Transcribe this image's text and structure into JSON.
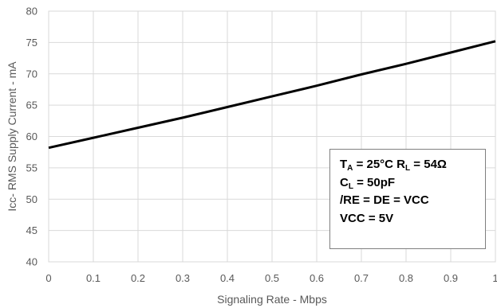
{
  "chart_data": {
    "type": "line",
    "title": "",
    "xlabel": "Signaling Rate - Mbps",
    "ylabel": "Icc- RMS Supply Current - mA",
    "xlim": [
      0,
      1
    ],
    "ylim": [
      40,
      80
    ],
    "x_ticks": [
      "0",
      "0.1",
      "0.2",
      "0.3",
      "0.4",
      "0.5",
      "0.6",
      "0.7",
      "0.8",
      "0.9",
      "1"
    ],
    "y_ticks": [
      "40",
      "45",
      "50",
      "55",
      "60",
      "65",
      "70",
      "75",
      "80"
    ],
    "grid": true,
    "legend": null,
    "series": [
      {
        "color": "#000000",
        "x": [
          0,
          0.1,
          0.2,
          0.3,
          0.4,
          0.5,
          0.6,
          0.7,
          0.8,
          0.9,
          1.0
        ],
        "y": [
          58.2,
          59.8,
          61.4,
          63.0,
          64.7,
          66.4,
          68.1,
          69.9,
          71.6,
          73.4,
          75.2
        ]
      }
    ],
    "annotation": {
      "line1": {
        "t": "T",
        "t_sub": "A",
        "t_rest": " = 25°C  R",
        "r_sub": "L",
        "r_rest": " = 54Ω"
      },
      "line2": {
        "c": "C",
        "c_sub": "L",
        "c_rest": " = 50pF"
      },
      "line3": "/RE = DE = VCC",
      "line4": "VCC = 5V"
    }
  }
}
